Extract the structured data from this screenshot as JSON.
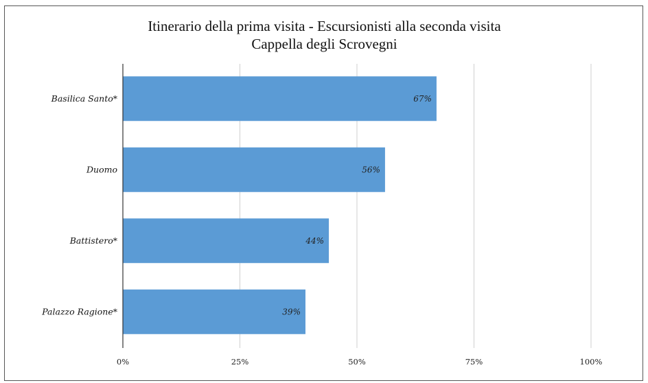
{
  "chart_data": {
    "type": "bar",
    "orientation": "horizontal",
    "title": "Itinerario della prima visita - Escursionisti alla seconda visita",
    "subtitle": "Cappella degli Scrovegni",
    "categories": [
      "Basilica Santo*",
      "Duomo",
      "Battistero*",
      "Palazzo Ragione*"
    ],
    "values": [
      67,
      56,
      44,
      39
    ],
    "data_labels": [
      "67%",
      "56%",
      "44%",
      "39%"
    ],
    "xlim": [
      0,
      100
    ],
    "xticks": [
      "0%",
      "25%",
      "50%",
      "75%",
      "100%"
    ],
    "bar_color": "#5b9bd5",
    "grid": true,
    "legend": "none"
  }
}
